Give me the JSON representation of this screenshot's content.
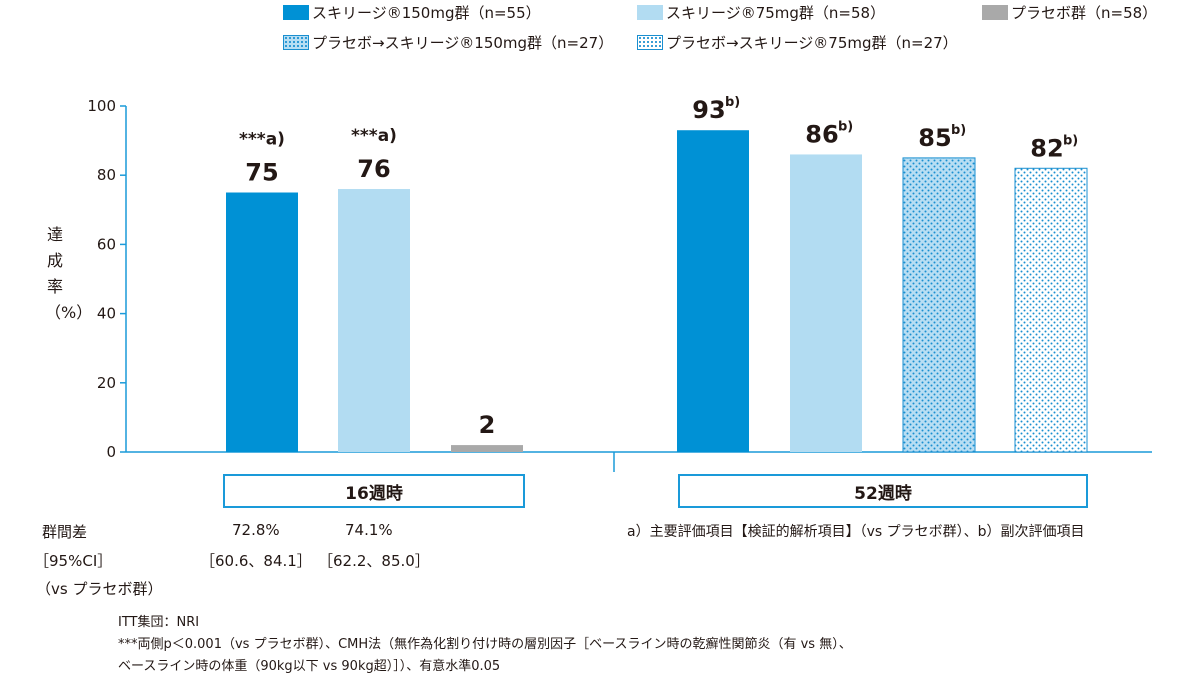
{
  "legend": [
    {
      "label": "スキリージ®150mg群（n=55）",
      "swatch": "solid-blue"
    },
    {
      "label": "スキリージ®75mg群（n=58）",
      "swatch": "light"
    },
    {
      "label": "プラセボ群（n=58）",
      "swatch": "gray"
    },
    {
      "label": "プラセボ→スキリージ®150mg群（n=27）",
      "swatch": "dot-fill"
    },
    {
      "label": "プラセボ→スキリージ®75mg群（n=27）",
      "swatch": "dot-white"
    }
  ],
  "colors": {
    "solid_blue": "#0091d5",
    "light_blue": "#b2dcf2",
    "gray": "#a9a9a9",
    "dot": "#1a8fd0",
    "dot_fill": "#b8def3",
    "axis": "#1a9ad9",
    "box_border": "#1a9ad9"
  },
  "chart_data": {
    "type": "bar",
    "ylabel": "達成率（%）",
    "ylim": [
      0,
      100
    ],
    "yticks": [
      "0",
      "20",
      "40",
      "60",
      "80",
      "100"
    ],
    "grid": false,
    "legend_placement": "top",
    "groups": [
      {
        "label": "16週時",
        "bars": [
          {
            "series": "スキリージ®150mg群（n=55）",
            "value": 75,
            "label": "75",
            "annotation": "***a)",
            "style": "solid-blue"
          },
          {
            "series": "スキリージ®75mg群（n=58）",
            "value": 76,
            "label": "76",
            "annotation": "***a)",
            "style": "light"
          },
          {
            "series": "プラセボ群（n=58）",
            "value": 2,
            "label": "2",
            "annotation": "",
            "style": "gray"
          }
        ]
      },
      {
        "label": "52週時",
        "bars": [
          {
            "series": "スキリージ®150mg群（n=55）",
            "value": 93,
            "label": "93",
            "annotation": "b)",
            "style": "solid-blue"
          },
          {
            "series": "スキリージ®75mg群（n=58）",
            "value": 86,
            "label": "86",
            "annotation": "b)",
            "style": "light"
          },
          {
            "series": "プラセボ→スキリージ®150mg群（n=27）",
            "value": 85,
            "label": "85",
            "annotation": "b)",
            "style": "dot-fill"
          },
          {
            "series": "プラセボ→スキリージ®75mg群（n=27）",
            "value": 82,
            "label": "82",
            "annotation": "b)",
            "style": "dot-white"
          }
        ]
      }
    ]
  },
  "difference": {
    "label_line1": "群間差",
    "label_line2": "［95%CI］",
    "label_line3": "（vs プラセボ群）",
    "val1": "72.8%",
    "val2": "74.1%",
    "ci1": "［60.6、84.1］",
    "ci2": "［62.2、85.0］"
  },
  "endpoint_note": "a）主要評価項目【検証的解析項目】（vs プラセボ群）、b）副次評価項目",
  "footnotes": [
    "ITT集団：NRI",
    "***両側p＜0.001（vs プラセボ群）、CMH法（無作為化割り付け時の層別因子［ベースライン時の乾癬性関節炎（有 vs 無）、",
    "ベースライン時の体重（90kg以下 vs 90kg超）］）、有意水準0.05"
  ]
}
